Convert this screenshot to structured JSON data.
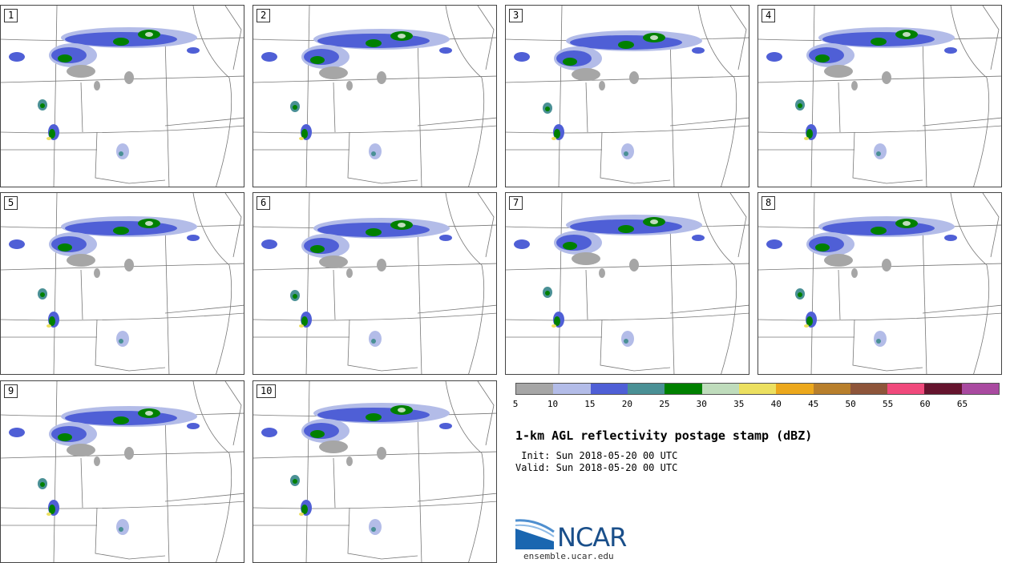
{
  "panels": [
    {
      "label": "1"
    },
    {
      "label": "2"
    },
    {
      "label": "3"
    },
    {
      "label": "4"
    },
    {
      "label": "5"
    },
    {
      "label": "6"
    },
    {
      "label": "7"
    },
    {
      "label": "8"
    },
    {
      "label": "9"
    },
    {
      "label": "10"
    }
  ],
  "colorbar": {
    "colors": [
      "#a6a6a6",
      "#b3bce8",
      "#4f5fd6",
      "#4a9095",
      "#008000",
      "#bfdcbc",
      "#ece060",
      "#eca81c",
      "#b87f2c",
      "#8e553a",
      "#f04a7c",
      "#65142e",
      "#a94aa0"
    ],
    "ticks": [
      "5",
      "10",
      "15",
      "20",
      "25",
      "30",
      "35",
      "40",
      "45",
      "50",
      "55",
      "60",
      "65"
    ]
  },
  "title": "1-km AGL reflectivity postage stamp (dBZ)",
  "init_text": " Init: Sun 2018-05-20 00 UTC",
  "valid_text": "Valid: Sun 2018-05-20 00 UTC",
  "logo": {
    "name": "NCAR",
    "url": "ensemble.ucar.edu",
    "arc_color": "#4f8fcf",
    "brand_color": "#1a4f8a"
  }
}
